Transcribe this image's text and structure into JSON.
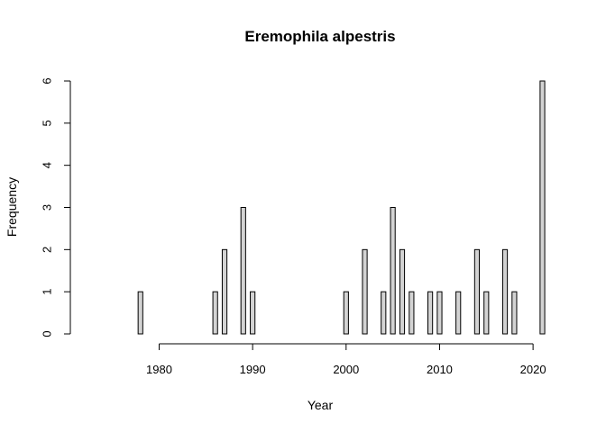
{
  "chart_data": {
    "type": "bar",
    "title": "Eremophila alpestris",
    "xlabel": "Year",
    "ylabel": "Frequency",
    "x_range": [
      1978,
      2021
    ],
    "xlim": [
      1970.5,
      2022.4
    ],
    "x_ticks": [
      1980,
      1990,
      2000,
      2010,
      2020
    ],
    "ylim": [
      0,
      6
    ],
    "y_ticks": [
      0,
      1,
      2,
      3,
      4,
      5,
      6
    ],
    "bar_fill": "#d3d3d3",
    "bar_stroke": "#000000",
    "data": [
      {
        "year": 1978,
        "value": 1
      },
      {
        "year": 1986,
        "value": 1
      },
      {
        "year": 1987,
        "value": 2
      },
      {
        "year": 1989,
        "value": 3
      },
      {
        "year": 1990,
        "value": 1
      },
      {
        "year": 2000,
        "value": 1
      },
      {
        "year": 2002,
        "value": 2
      },
      {
        "year": 2004,
        "value": 1
      },
      {
        "year": 2005,
        "value": 3
      },
      {
        "year": 2006,
        "value": 2
      },
      {
        "year": 2007,
        "value": 1
      },
      {
        "year": 2009,
        "value": 1
      },
      {
        "year": 2010,
        "value": 1
      },
      {
        "year": 2012,
        "value": 1
      },
      {
        "year": 2014,
        "value": 2
      },
      {
        "year": 2015,
        "value": 1
      },
      {
        "year": 2017,
        "value": 2
      },
      {
        "year": 2018,
        "value": 1
      },
      {
        "year": 2021,
        "value": 6
      }
    ]
  }
}
